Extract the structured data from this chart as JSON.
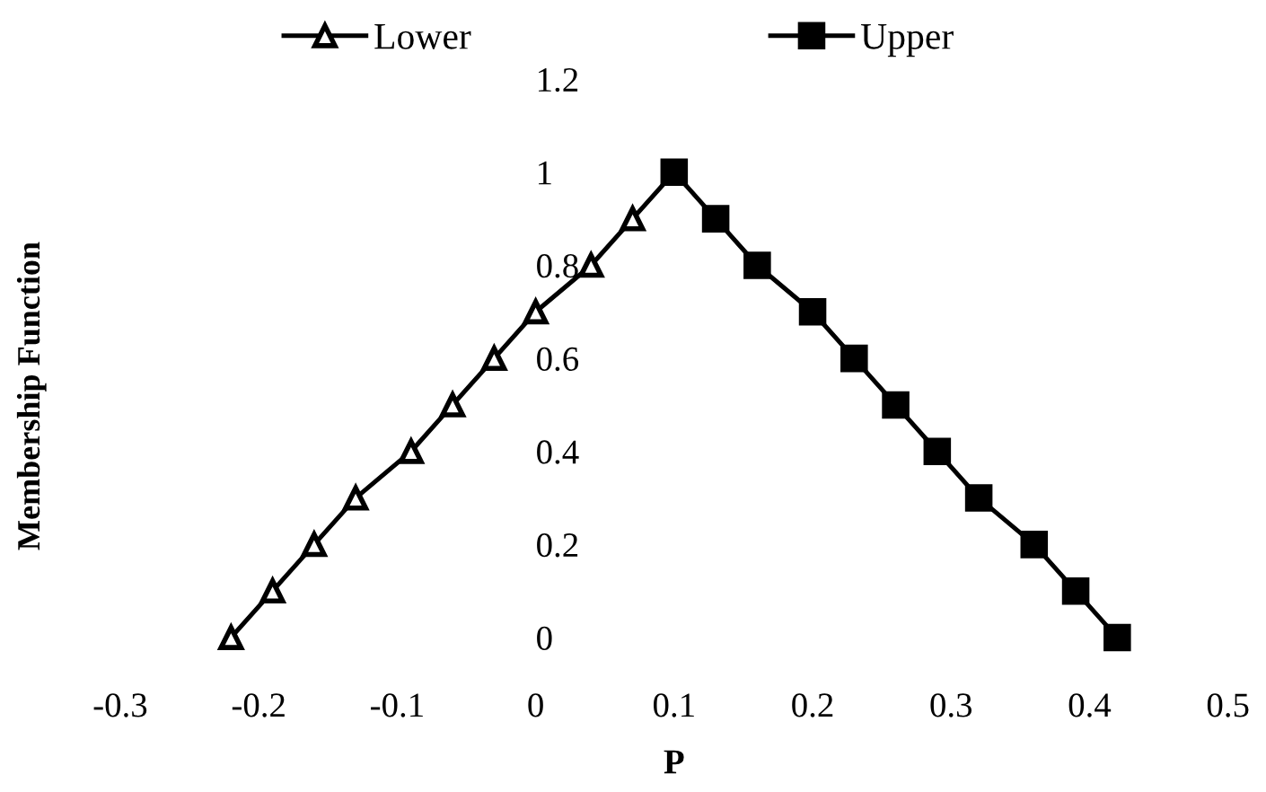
{
  "chart_data": {
    "type": "line",
    "xlabel": "P",
    "ylabel": "Membership Function",
    "series": [
      {
        "name": "Lower",
        "color": "#000000",
        "marker": "triangle",
        "x": [
          -0.22,
          -0.19,
          -0.16,
          -0.13,
          -0.09,
          -0.06,
          -0.03,
          0.0,
          0.04,
          0.07,
          0.1
        ],
        "values": [
          0,
          0.1,
          0.2,
          0.3,
          0.4,
          0.5,
          0.6,
          0.7,
          0.8,
          0.9,
          1.0
        ]
      },
      {
        "name": "Upper",
        "color": "#000000",
        "marker": "square",
        "x": [
          0.1,
          0.13,
          0.16,
          0.2,
          0.23,
          0.26,
          0.29,
          0.32,
          0.36,
          0.39,
          0.42
        ],
        "values": [
          1.0,
          0.9,
          0.8,
          0.7,
          0.6,
          0.5,
          0.4,
          0.3,
          0.2,
          0.1,
          0
        ]
      }
    ],
    "xlim": [
      -0.3,
      0.5
    ],
    "xticks": [
      -0.3,
      -0.2,
      -0.1,
      0,
      0.1,
      0.2,
      0.3,
      0.4,
      0.5
    ],
    "ylim": [
      0,
      1.2
    ],
    "yticks": [
      0,
      0.2,
      0.4,
      0.6,
      0.8,
      1,
      1.2
    ],
    "grid": false,
    "legend": "top",
    "line_style": "solid"
  }
}
